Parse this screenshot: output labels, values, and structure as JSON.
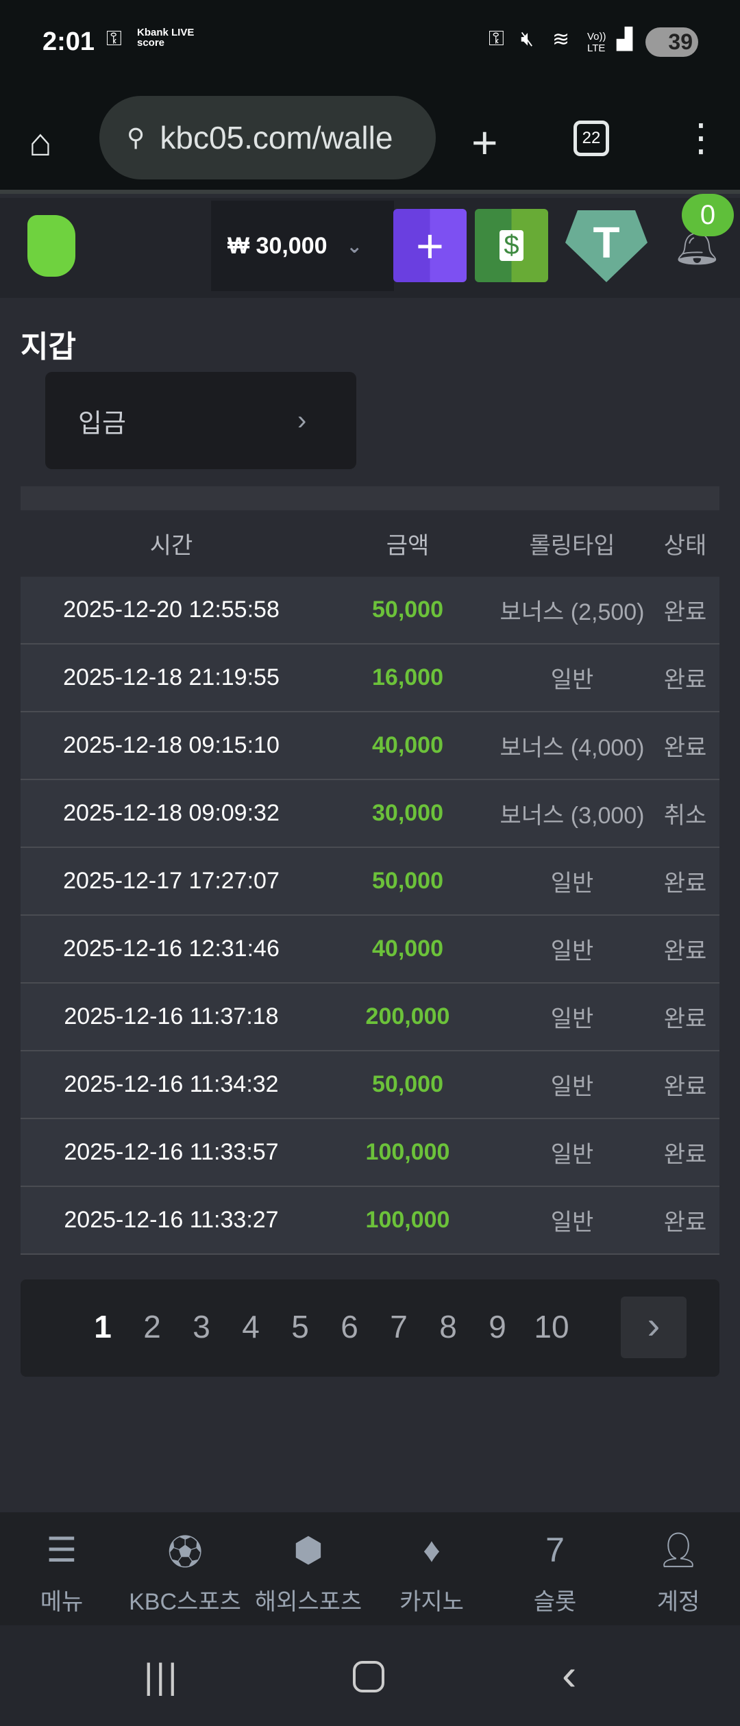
{
  "status_bar": {
    "time": "2:01",
    "notif": "Kbank LIVE score",
    "battery": "39"
  },
  "browser": {
    "url": "kbc05.com/walle",
    "tabs": "22"
  },
  "header": {
    "balance": "₩ 30,000",
    "notifications": "0",
    "colors": {
      "deposit": "#7a4cf0",
      "cash": "#5a9e3a",
      "tether": "#6aad95",
      "badge": "#5fbf3a"
    }
  },
  "page": {
    "title": "지갑",
    "deposit_label": "입금"
  },
  "table": {
    "headers": [
      "시간",
      "금액",
      "롤링타입",
      "상태"
    ],
    "rows": [
      [
        "2025-12-20 12:55:58",
        "50,000",
        "보너스 (2,500)",
        "완료"
      ],
      [
        "2025-12-18 21:19:55",
        "16,000",
        "일반",
        "완료"
      ],
      [
        "2025-12-18 09:15:10",
        "40,000",
        "보너스 (4,000)",
        "완료"
      ],
      [
        "2025-12-18 09:09:32",
        "30,000",
        "보너스 (3,000)",
        "취소"
      ],
      [
        "2025-12-17 17:27:07",
        "50,000",
        "일반",
        "완료"
      ],
      [
        "2025-12-16 12:31:46",
        "40,000",
        "일반",
        "완료"
      ],
      [
        "2025-12-16 11:37:18",
        "200,000",
        "일반",
        "완료"
      ],
      [
        "2025-12-16 11:34:32",
        "50,000",
        "일반",
        "완료"
      ],
      [
        "2025-12-16 11:33:57",
        "100,000",
        "일반",
        "완료"
      ],
      [
        "2025-12-16 11:33:27",
        "100,000",
        "일반",
        "완료"
      ]
    ]
  },
  "pagination": {
    "pages": [
      "1",
      "2",
      "3",
      "4",
      "5",
      "6",
      "7",
      "8",
      "9",
      "10"
    ],
    "current": "1"
  },
  "bottom_nav": [
    {
      "label": "메뉴",
      "icon": "menu-search-icon"
    },
    {
      "label": "KBC스포츠",
      "icon": "soccer-ball-icon"
    },
    {
      "label": "해외스포츠",
      "icon": "dice-icon"
    },
    {
      "label": "카지노",
      "icon": "cards-icon"
    },
    {
      "label": "슬롯",
      "icon": "slot-7-icon"
    },
    {
      "label": "계정",
      "icon": "account-icon"
    }
  ]
}
